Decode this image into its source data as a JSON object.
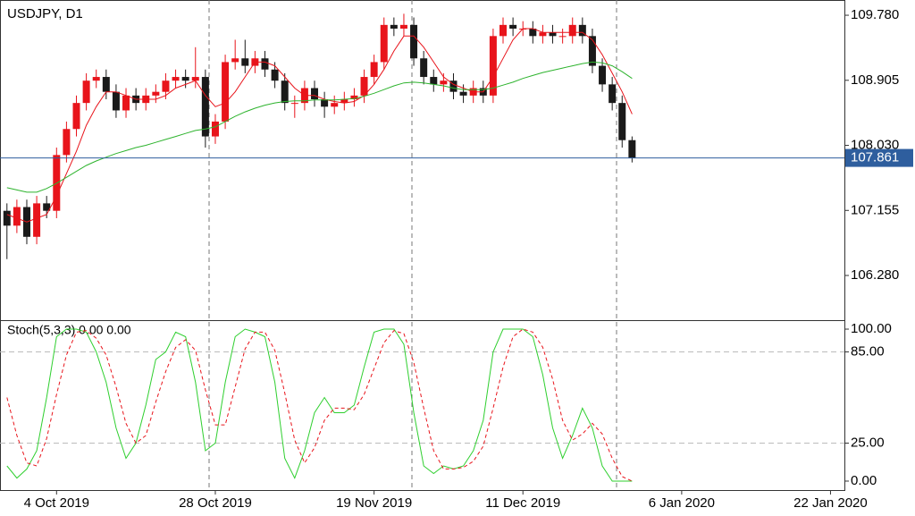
{
  "chart_data": [
    {
      "type": "candlestick",
      "title": "USDJPY, D1",
      "xlim": [
        -0.7,
        84.4
      ],
      "ylim": [
        105.679,
        109.985
      ],
      "yticks": [
        {
          "value": 109.78,
          "label": "109.780"
        },
        108.905,
        {
          "value": 108.03,
          "label": "108.030"
        },
        107.155,
        {
          "value": 106.28,
          "label": "106.280"
        }
      ],
      "up_color": "#e8141b",
      "down_color": "#1a1a1a",
      "open": [
        107.15,
        106.95,
        107.2,
        106.8,
        107.25,
        107.15,
        107.9,
        108.25,
        108.6,
        108.9,
        108.95,
        108.75,
        108.5,
        108.7,
        108.6,
        108.7,
        108.75,
        108.9,
        108.95,
        108.9,
        108.95,
        108.15,
        108.35,
        109.15,
        109.2,
        109.1,
        109.2,
        109.05,
        108.9,
        108.6,
        108.6,
        108.8,
        108.65,
        108.55,
        108.6,
        108.65,
        108.7,
        108.95,
        109.15,
        109.65,
        109.6,
        109.65,
        109.2,
        108.95,
        108.85,
        108.9,
        108.75,
        108.7,
        108.8,
        108.7,
        109.5,
        109.65,
        109.6,
        109.6,
        109.5,
        109.55,
        109.5,
        109.5,
        109.65,
        109.5,
        109.1,
        108.85,
        108.6,
        108.1
      ],
      "high": [
        107.25,
        107.3,
        107.3,
        107.35,
        107.35,
        108.0,
        108.35,
        108.7,
        109.0,
        109.05,
        109.05,
        108.85,
        108.8,
        108.8,
        108.8,
        108.85,
        109.0,
        109.05,
        109.05,
        109.35,
        109.05,
        108.45,
        109.25,
        109.45,
        109.45,
        109.3,
        109.3,
        109.15,
        109.0,
        108.7,
        108.9,
        108.9,
        108.75,
        108.7,
        108.75,
        108.8,
        109.05,
        109.25,
        109.75,
        109.75,
        109.8,
        109.75,
        109.3,
        109.05,
        109.0,
        109.0,
        108.85,
        108.9,
        108.9,
        109.6,
        109.75,
        109.75,
        109.7,
        109.7,
        109.65,
        109.65,
        109.6,
        109.75,
        109.75,
        109.6,
        109.2,
        108.95,
        108.7,
        108.15
      ],
      "low": [
        106.5,
        106.85,
        106.7,
        106.7,
        107.05,
        107.05,
        107.8,
        108.15,
        108.5,
        108.8,
        108.65,
        108.4,
        108.4,
        108.5,
        108.5,
        108.6,
        108.65,
        108.8,
        108.8,
        108.8,
        108.0,
        108.05,
        108.25,
        109.05,
        109.0,
        109.0,
        108.95,
        108.8,
        108.5,
        108.4,
        108.5,
        108.55,
        108.4,
        108.45,
        108.5,
        108.55,
        108.6,
        108.85,
        109.05,
        109.5,
        109.5,
        109.1,
        108.85,
        108.75,
        108.75,
        108.65,
        108.6,
        108.6,
        108.6,
        108.6,
        109.4,
        109.5,
        109.5,
        109.4,
        109.4,
        109.4,
        109.4,
        109.4,
        109.4,
        109.0,
        108.75,
        108.5,
        108.0,
        107.8
      ],
      "close": [
        106.95,
        107.2,
        106.8,
        107.25,
        107.15,
        107.9,
        108.25,
        108.6,
        108.9,
        108.95,
        108.75,
        108.5,
        108.7,
        108.6,
        108.7,
        108.75,
        108.9,
        108.95,
        108.9,
        108.95,
        108.15,
        108.35,
        109.15,
        109.2,
        109.1,
        109.2,
        109.05,
        108.9,
        108.6,
        108.6,
        108.8,
        108.65,
        108.55,
        108.6,
        108.65,
        108.7,
        108.95,
        109.15,
        109.65,
        109.6,
        109.65,
        109.2,
        108.95,
        108.85,
        108.9,
        108.75,
        108.7,
        108.8,
        108.7,
        109.5,
        109.65,
        109.6,
        109.6,
        109.5,
        109.55,
        109.5,
        109.5,
        109.65,
        109.5,
        109.1,
        108.85,
        108.6,
        108.1,
        107.86
      ],
      "series": [
        {
          "color": "#e8141b",
          "values": [
            107.1,
            107.05,
            107.0,
            107.05,
            107.1,
            107.35,
            107.65,
            107.95,
            108.3,
            108.55,
            108.75,
            108.75,
            108.7,
            108.65,
            108.65,
            108.65,
            108.7,
            108.8,
            108.85,
            108.9,
            108.7,
            108.55,
            108.6,
            108.75,
            108.95,
            109.15,
            109.15,
            109.1,
            108.95,
            108.8,
            108.7,
            108.7,
            108.65,
            108.62,
            108.6,
            108.62,
            108.7,
            108.85,
            109.05,
            109.3,
            109.5,
            109.5,
            109.35,
            109.15,
            108.95,
            108.85,
            108.8,
            108.75,
            108.75,
            108.95,
            109.2,
            109.45,
            109.6,
            109.6,
            109.55,
            109.55,
            109.55,
            109.55,
            109.55,
            109.45,
            109.25,
            109.0,
            108.75,
            108.45
          ]
        },
        {
          "color": "#2db32d",
          "values": [
            107.46,
            107.43,
            107.4,
            107.4,
            107.45,
            107.52,
            107.6,
            107.68,
            107.76,
            107.82,
            107.87,
            107.92,
            107.96,
            108.0,
            108.03,
            108.07,
            108.11,
            108.15,
            108.19,
            108.23,
            108.25,
            108.28,
            108.35,
            108.42,
            108.48,
            108.53,
            108.57,
            108.6,
            108.62,
            108.63,
            108.63,
            108.64,
            108.64,
            108.64,
            108.65,
            108.66,
            108.69,
            108.73,
            108.78,
            108.83,
            108.87,
            108.88,
            108.87,
            108.85,
            108.83,
            108.8,
            108.78,
            108.78,
            108.78,
            108.8,
            108.84,
            108.88,
            108.93,
            108.97,
            109.01,
            109.04,
            109.07,
            109.1,
            109.13,
            109.15,
            109.14,
            109.1,
            109.02,
            108.93
          ]
        }
      ],
      "last_price": 107.861,
      "last_price_color": "#2e5e9e"
    },
    {
      "type": "line",
      "title": "Stoch(5,3,3) 0.00 0.00",
      "xlim": [
        -0.7,
        84.4
      ],
      "ylim": [
        -5.9,
        105.9
      ],
      "yticks": [
        {
          "value": 100,
          "label": "100.00"
        },
        {
          "value": 85,
          "label": "85.00"
        },
        {
          "value": 25,
          "label": "25.00"
        },
        {
          "value": 0,
          "label": "0.00"
        }
      ],
      "levels": [
        85,
        25
      ],
      "xticks": [
        {
          "value": 5,
          "label": "4 Oct 2019"
        },
        {
          "value": 21,
          "label": "28 Oct 2019"
        },
        {
          "value": 37,
          "label": "19 Nov 2019"
        },
        {
          "value": 52,
          "label": "11 Dec 2019"
        },
        {
          "value": 68,
          "label": "6 Jan 2020"
        },
        {
          "value": 83,
          "label": "22 Jan 2020"
        }
      ],
      "series": [
        {
          "color": "#2fcf2f",
          "dashed": false,
          "values": [
            10,
            2,
            8,
            20,
            55,
            95,
            100,
            100,
            98,
            85,
            65,
            35,
            15,
            25,
            50,
            80,
            85,
            98,
            95,
            65,
            20,
            25,
            65,
            95,
            100,
            98,
            95,
            65,
            15,
            2,
            20,
            45,
            55,
            45,
            45,
            50,
            75,
            98,
            100,
            100,
            90,
            45,
            10,
            5,
            10,
            8,
            10,
            20,
            40,
            85,
            100,
            100,
            100,
            95,
            70,
            35,
            15,
            30,
            48,
            35,
            10,
            0,
            0,
            0
          ]
        },
        {
          "color": "#e8141b",
          "dashed": true,
          "values": [
            55,
            30,
            12,
            10,
            28,
            57,
            83,
            98,
            99,
            94,
            83,
            62,
            38,
            25,
            30,
            52,
            72,
            88,
            93,
            86,
            60,
            37,
            37,
            62,
            87,
            98,
            98,
            86,
            58,
            27,
            12,
            22,
            40,
            48,
            48,
            47,
            57,
            74,
            91,
            99,
            97,
            78,
            48,
            20,
            8,
            8,
            9,
            13,
            23,
            48,
            75,
            95,
            100,
            98,
            88,
            67,
            40,
            27,
            31,
            38,
            31,
            15,
            3,
            0
          ]
        }
      ]
    }
  ]
}
